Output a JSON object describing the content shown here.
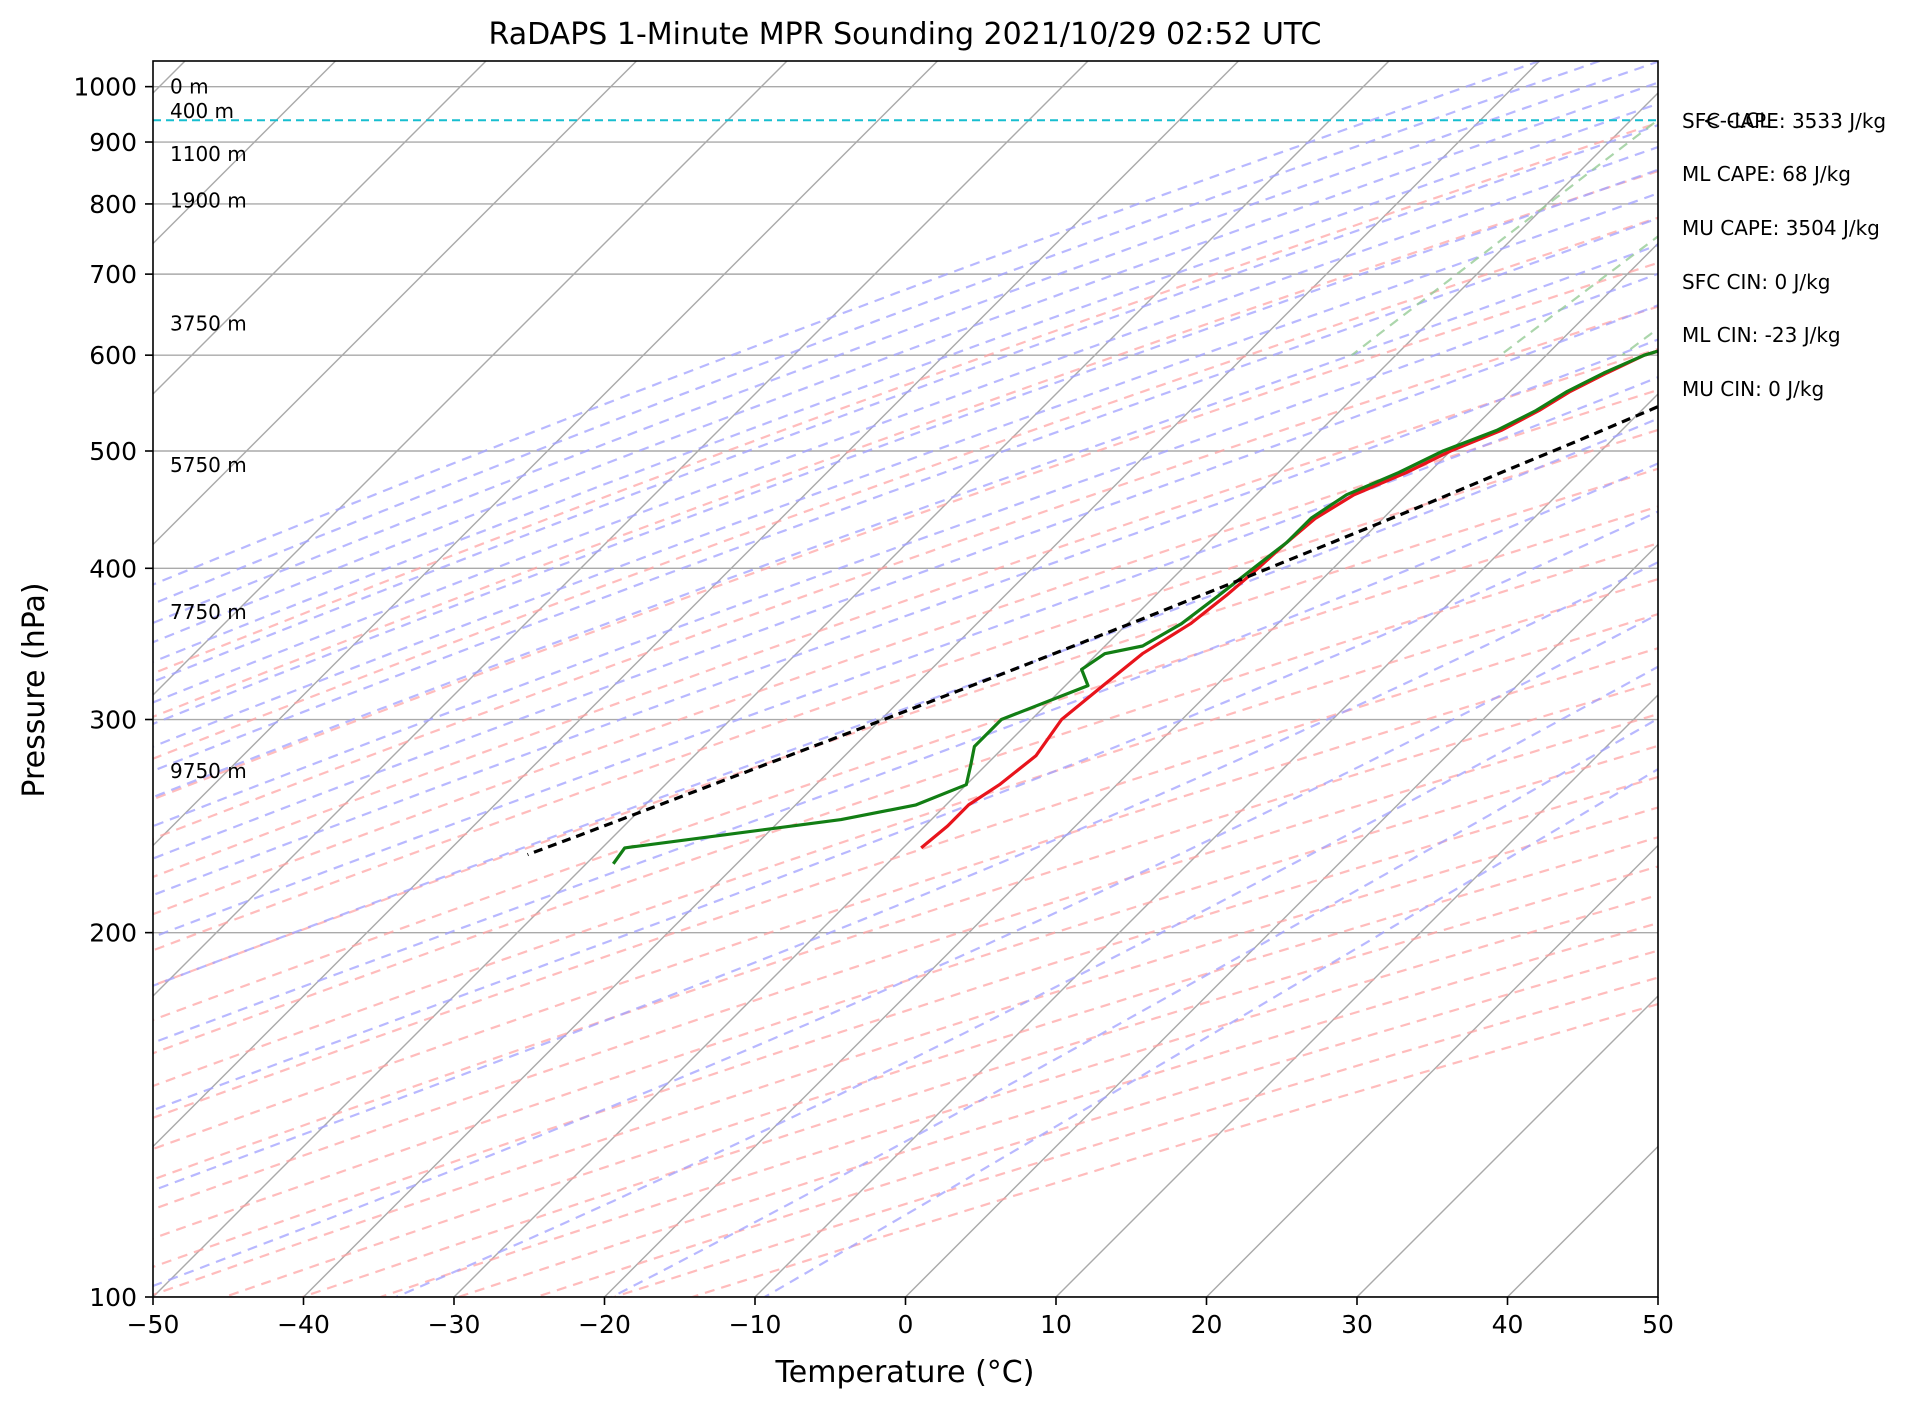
{
  "chart_data": {
    "type": "skew-t",
    "title": "RaDAPS 1-Minute MPR Sounding 2021/10/29 02:52 UTC",
    "xlabel": "Temperature (°C)",
    "ylabel": "Pressure (hPa)",
    "xlim": [
      -50,
      50
    ],
    "ylim": [
      1050,
      100
    ],
    "log_pressure_axis": true,
    "grid": true,
    "x_ticks": [
      "−50",
      "−40",
      "−30",
      "−20",
      "−10",
      "0",
      "10",
      "20",
      "30",
      "40",
      "50"
    ],
    "y_ticks": [
      "100",
      "200",
      "300",
      "400",
      "500",
      "600",
      "700",
      "800",
      "900",
      "1000"
    ],
    "height_labels": [
      {
        "label": "0 m",
        "p": 1000
      },
      {
        "label": "400 m",
        "p": 955
      },
      {
        "label": "1100 m",
        "p": 880
      },
      {
        "label": "1900 m",
        "p": 805
      },
      {
        "label": "3750 m",
        "p": 637
      },
      {
        "label": "5750 m",
        "p": 487
      },
      {
        "label": "7750 m",
        "p": 368
      },
      {
        "label": "9750 m",
        "p": 272
      }
    ],
    "indices": [
      "SFC CAPE: 3533 J/kg",
      "ML CAPE: 68 J/kg",
      "MU CAPE: 3504 J/kg",
      "SFC CIN: 0 J/kg",
      "ML CIN: -23 J/kg",
      "MU CIN: 0 J/kg"
    ],
    "lcl": {
      "label": "<--LCL",
      "p": 938
    },
    "series": [
      {
        "color": "#e8141c",
        "points": [
          [
            12.3,
            980
          ],
          [
            14.5,
            980
          ],
          [
            11,
            980
          ],
          [
            4,
            950
          ],
          [
            0,
            920
          ],
          [
            3,
            900
          ],
          [
            5.5,
            870
          ],
          [
            7,
            860
          ],
          [
            7.6,
            850
          ],
          [
            7.5,
            840
          ],
          [
            7.2,
            830
          ],
          [
            6,
            820
          ],
          [
            5,
            810
          ],
          [
            4.5,
            800
          ],
          [
            4.8,
            790
          ],
          [
            5.3,
            780
          ],
          [
            3.5,
            760
          ],
          [
            2.8,
            740
          ],
          [
            0.5,
            720
          ],
          [
            -2.8,
            700
          ],
          [
            -6,
            680
          ],
          [
            -8.3,
            650
          ],
          [
            -10.8,
            620
          ],
          [
            -13.5,
            600
          ],
          [
            -14.8,
            580
          ],
          [
            -16,
            560
          ],
          [
            -16.8,
            540
          ],
          [
            -18,
            520
          ],
          [
            -20,
            500
          ],
          [
            -21.5,
            480
          ],
          [
            -23.5,
            460
          ],
          [
            -24.5,
            440
          ],
          [
            -24.8,
            420
          ],
          [
            -25,
            400
          ],
          [
            -25.3,
            380
          ],
          [
            -25.8,
            360
          ],
          [
            -27,
            340
          ],
          [
            -27.5,
            320
          ],
          [
            -28,
            300
          ],
          [
            -27.3,
            280
          ],
          [
            -27.8,
            265
          ],
          [
            -28.5,
            255
          ],
          [
            -28.5,
            245
          ],
          [
            -28.8,
            235
          ]
        ]
      },
      {
        "color": "#127e14",
        "points": [
          [
            14.5,
            980
          ],
          [
            11,
            980
          ],
          [
            4,
            950
          ],
          [
            0,
            920
          ],
          [
            -2.5,
            900
          ],
          [
            -5.5,
            890
          ],
          [
            -7.5,
            880
          ],
          [
            -7.5,
            870
          ],
          [
            -6,
            860
          ],
          [
            0,
            850
          ],
          [
            5,
            840
          ],
          [
            7,
            830
          ],
          [
            6.5,
            828
          ],
          [
            4.6,
            820
          ],
          [
            4.5,
            812
          ],
          [
            3.6,
            800
          ],
          [
            4.4,
            795
          ],
          [
            4.8,
            790
          ],
          [
            5.3,
            780
          ],
          [
            3.5,
            760
          ],
          [
            2.8,
            740
          ],
          [
            0.5,
            720
          ],
          [
            -2.8,
            700
          ],
          [
            -6,
            680
          ],
          [
            -8.3,
            650
          ],
          [
            -10.8,
            620
          ],
          [
            -13.5,
            600
          ],
          [
            -15,
            580
          ],
          [
            -16.2,
            560
          ],
          [
            -17,
            540
          ],
          [
            -18.3,
            520
          ],
          [
            -20.5,
            500
          ],
          [
            -22,
            480
          ],
          [
            -24,
            460
          ],
          [
            -24.8,
            440
          ],
          [
            -24.8,
            420
          ],
          [
            -25.3,
            400
          ],
          [
            -25.8,
            380
          ],
          [
            -26.4,
            360
          ],
          [
            -27.5,
            345
          ],
          [
            -29.5,
            340
          ],
          [
            -30,
            330
          ],
          [
            -28.5,
            320
          ],
          [
            -32,
            300
          ],
          [
            -32,
            285
          ],
          [
            -31,
            275
          ],
          [
            -30,
            265
          ],
          [
            -32,
            255
          ],
          [
            -36,
            248
          ],
          [
            -48.5,
            235
          ],
          [
            -48.2,
            228
          ]
        ]
      },
      {
        "color": "#000000",
        "dashed": true,
        "points": [
          [
            14.5,
            980
          ],
          [
            12.6,
            956
          ],
          [
            11.5,
            935
          ],
          [
            11,
            920
          ],
          [
            10.6,
            900
          ],
          [
            9.3,
            870
          ],
          [
            8.2,
            840
          ],
          [
            7,
            810
          ],
          [
            5.8,
            780
          ],
          [
            4.3,
            750
          ],
          [
            2.8,
            720
          ],
          [
            1.2,
            690
          ],
          [
            -0.6,
            660
          ],
          [
            -2.5,
            630
          ],
          [
            -4.7,
            600
          ],
          [
            -7,
            570
          ],
          [
            -9.5,
            540
          ],
          [
            -12.2,
            510
          ],
          [
            -15.2,
            480
          ],
          [
            -18.3,
            450
          ],
          [
            -21.8,
            420
          ],
          [
            -25.6,
            390
          ],
          [
            -29.8,
            360
          ],
          [
            -34.5,
            330
          ],
          [
            -39.8,
            300
          ],
          [
            -45.8,
            270
          ],
          [
            -52.5,
            240
          ],
          [
            -54.5,
            232
          ]
        ]
      }
    ]
  }
}
